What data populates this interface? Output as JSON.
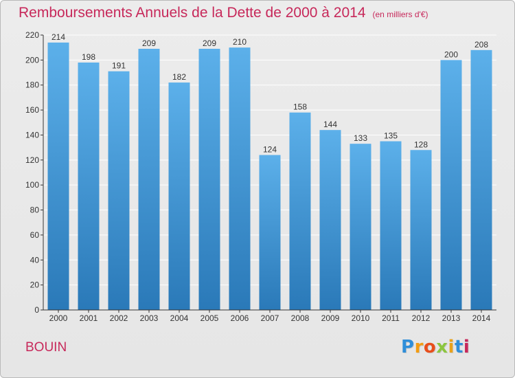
{
  "chart_data": {
    "type": "bar",
    "title": "Remboursements Annuels de la Dette de 2000 à 2014",
    "subtitle": "(en milliers d'€)",
    "categories": [
      "2000",
      "2001",
      "2002",
      "2003",
      "2004",
      "2005",
      "2006",
      "2007",
      "2008",
      "2009",
      "2010",
      "2011",
      "2012",
      "2013",
      "2014"
    ],
    "values": [
      214,
      198,
      191,
      209,
      182,
      209,
      210,
      124,
      158,
      144,
      133,
      135,
      128,
      200,
      208
    ],
    "ylim": [
      0,
      220
    ],
    "yticks": [
      0,
      20,
      40,
      60,
      80,
      100,
      120,
      140,
      160,
      180,
      200,
      220
    ],
    "xlabel": "",
    "ylabel": "",
    "grid": true
  },
  "commune": "BOUIN",
  "logo": {
    "letters": [
      "P",
      "r",
      "o",
      "x",
      "i",
      "t",
      "i"
    ],
    "colors": [
      "#2f8ed9",
      "#f39c12",
      "#e84e1b",
      "#8cc63f",
      "#e8a21b",
      "#2f8ed9",
      "#c7285a"
    ]
  },
  "colors": {
    "title": "#c7285a",
    "bar_top": "#5cb0ea",
    "bar_bottom": "#2a79b8",
    "grid": "#ffffff",
    "axis": "#333333"
  }
}
